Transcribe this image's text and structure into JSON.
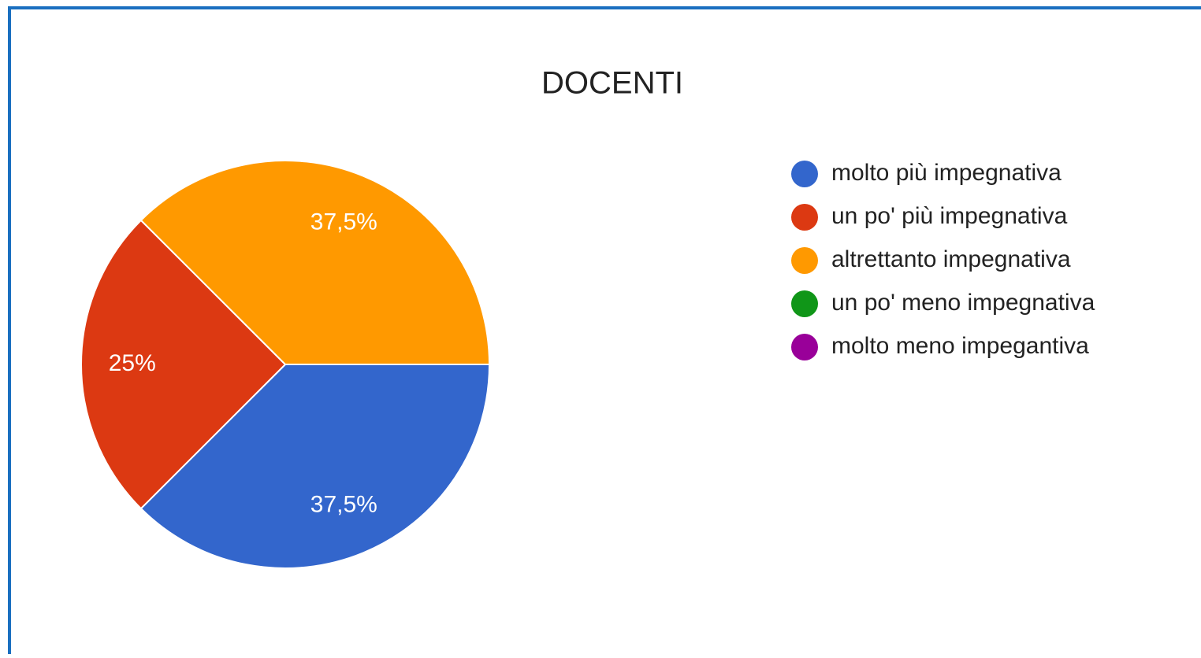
{
  "chart_data": {
    "type": "pie",
    "title": "DOCENTI",
    "categories": [
      "molto più impegnativa",
      "un po' più impegnativa",
      "altrettanto impegnativa",
      "un po' meno impegnativa",
      "molto meno impegantiva"
    ],
    "values": [
      37.5,
      25,
      37.5,
      0,
      0
    ],
    "value_labels": [
      "37,5%",
      "25%",
      "37,5%",
      null,
      null
    ],
    "colors": [
      "#3366cc",
      "#dc3912",
      "#ff9900",
      "#109618",
      "#990099"
    ],
    "legend": "right"
  }
}
